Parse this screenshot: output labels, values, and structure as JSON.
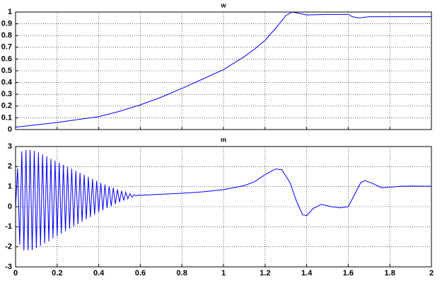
{
  "chart_data": [
    {
      "type": "line",
      "title": "w",
      "color": "#0000ff",
      "grid": true,
      "x": [
        0,
        0.1,
        0.2,
        0.3,
        0.4,
        0.5,
        0.6,
        0.7,
        0.8,
        0.9,
        1.0,
        1.1,
        1.15,
        1.2,
        1.25,
        1.3,
        1.33,
        1.36,
        1.4,
        1.5,
        1.6,
        1.62,
        1.65,
        1.7,
        1.8,
        2.0
      ],
      "values": [
        0.02,
        0.04,
        0.06,
        0.085,
        0.11,
        0.155,
        0.21,
        0.275,
        0.35,
        0.43,
        0.51,
        0.62,
        0.685,
        0.76,
        0.86,
        0.97,
        1.0,
        0.99,
        0.975,
        0.98,
        0.98,
        0.96,
        0.95,
        0.96,
        0.96,
        0.96
      ],
      "xlim": [
        0,
        2
      ],
      "xticks": [
        0,
        0.2,
        0.4,
        0.6,
        0.8,
        1,
        1.2,
        1.4,
        1.6,
        1.8,
        2
      ],
      "ylim": [
        0,
        1
      ],
      "yticks": [
        0,
        0.1,
        0.2,
        0.3,
        0.4,
        0.5,
        0.6,
        0.7,
        0.8,
        0.9,
        1
      ]
    },
    {
      "type": "line",
      "title": "m",
      "color": "#0000ff",
      "grid": true,
      "x": [
        0,
        0.01,
        0.02,
        0.03,
        0.04,
        0.05,
        0.06,
        0.07,
        0.08,
        0.09,
        0.1,
        0.11,
        0.12,
        0.13,
        0.14,
        0.15,
        0.16,
        0.17,
        0.18,
        0.19,
        0.2,
        0.21,
        0.22,
        0.23,
        0.24,
        0.25,
        0.26,
        0.27,
        0.28,
        0.29,
        0.3,
        0.31,
        0.32,
        0.33,
        0.34,
        0.35,
        0.36,
        0.37,
        0.38,
        0.39,
        0.4,
        0.41,
        0.42,
        0.43,
        0.44,
        0.45,
        0.46,
        0.47,
        0.48,
        0.49,
        0.5,
        0.51,
        0.52,
        0.53,
        0.54,
        0.55,
        0.56,
        0.57,
        0.58,
        0.59,
        0.6,
        0.7,
        0.8,
        0.9,
        1.0,
        1.1,
        1.15,
        1.2,
        1.25,
        1.28,
        1.32,
        1.35,
        1.38,
        1.4,
        1.43,
        1.47,
        1.52,
        1.56,
        1.6,
        1.63,
        1.66,
        1.68,
        1.72,
        1.76,
        1.8,
        1.85,
        1.9,
        2.0
      ],
      "values": [
        0,
        1.9,
        -1.89,
        2.76,
        -2.18,
        2.82,
        -2.17,
        2.83,
        -2.16,
        2.79,
        -2.06,
        2.7,
        -1.95,
        2.61,
        -1.84,
        2.52,
        -1.73,
        2.38,
        -1.57,
        2.29,
        -1.46,
        2.2,
        -1.34,
        2.09,
        -1.22,
        1.99,
        -1.1,
        1.89,
        -0.98,
        1.79,
        -0.87,
        1.69,
        -0.75,
        1.59,
        -0.63,
        1.49,
        -0.51,
        1.39,
        -0.39,
        1.29,
        -0.27,
        1.19,
        -0.17,
        1.1,
        -0.07,
        1.02,
        0.03,
        0.94,
        0.13,
        0.86,
        0.23,
        0.79,
        0.31,
        0.72,
        0.4,
        0.65,
        0.48,
        0.6,
        0.54,
        0.58,
        0.57,
        0.62,
        0.67,
        0.74,
        0.85,
        1.05,
        1.25,
        1.6,
        1.88,
        1.85,
        1.2,
        0.3,
        -0.4,
        -0.45,
        -0.1,
        0.12,
        0.0,
        -0.05,
        0.0,
        0.6,
        1.2,
        1.3,
        1.15,
        0.95,
        0.97,
        1.02,
        1.03,
        1.02
      ],
      "xlim": [
        0,
        2
      ],
      "xticks": [
        0,
        0.2,
        0.4,
        0.6,
        0.8,
        1,
        1.2,
        1.4,
        1.6,
        1.8,
        2
      ],
      "ylim": [
        -3,
        3
      ],
      "yticks": [
        -3,
        -2,
        -1,
        0,
        1,
        2,
        3
      ]
    }
  ]
}
